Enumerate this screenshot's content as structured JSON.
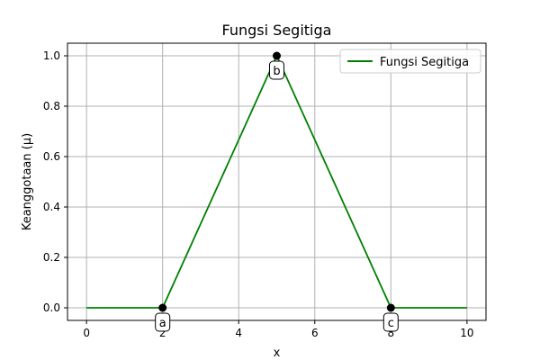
{
  "chart_data": {
    "type": "line",
    "title": "Fungsi Segitiga",
    "xlabel": "x",
    "ylabel": "Keanggotaan (μ)",
    "xlim": [
      -0.5,
      10.5
    ],
    "ylim": [
      -0.05,
      1.05
    ],
    "xticks": [
      0,
      2,
      4,
      6,
      8,
      10
    ],
    "xtick_labels": [
      "0",
      "2",
      "4",
      "6",
      "8",
      "10"
    ],
    "yticks": [
      0.0,
      0.2,
      0.4,
      0.6,
      0.8,
      1.0
    ],
    "ytick_labels": [
      "0.0",
      "0.2",
      "0.4",
      "0.6",
      "0.8",
      "1.0"
    ],
    "grid": true,
    "legend_position": "top-right",
    "series": [
      {
        "name": "Fungsi Segitiga",
        "color": "#008000",
        "x": [
          0,
          2,
          5,
          8,
          10
        ],
        "y": [
          0,
          0,
          1,
          0,
          0
        ]
      }
    ],
    "points": [
      {
        "label": "a",
        "x": 2,
        "y": 0,
        "label_position": "below"
      },
      {
        "label": "b",
        "x": 5,
        "y": 1,
        "label_position": "below"
      },
      {
        "label": "c",
        "x": 8,
        "y": 0,
        "label_position": "below"
      }
    ],
    "point_color": "#000000"
  }
}
